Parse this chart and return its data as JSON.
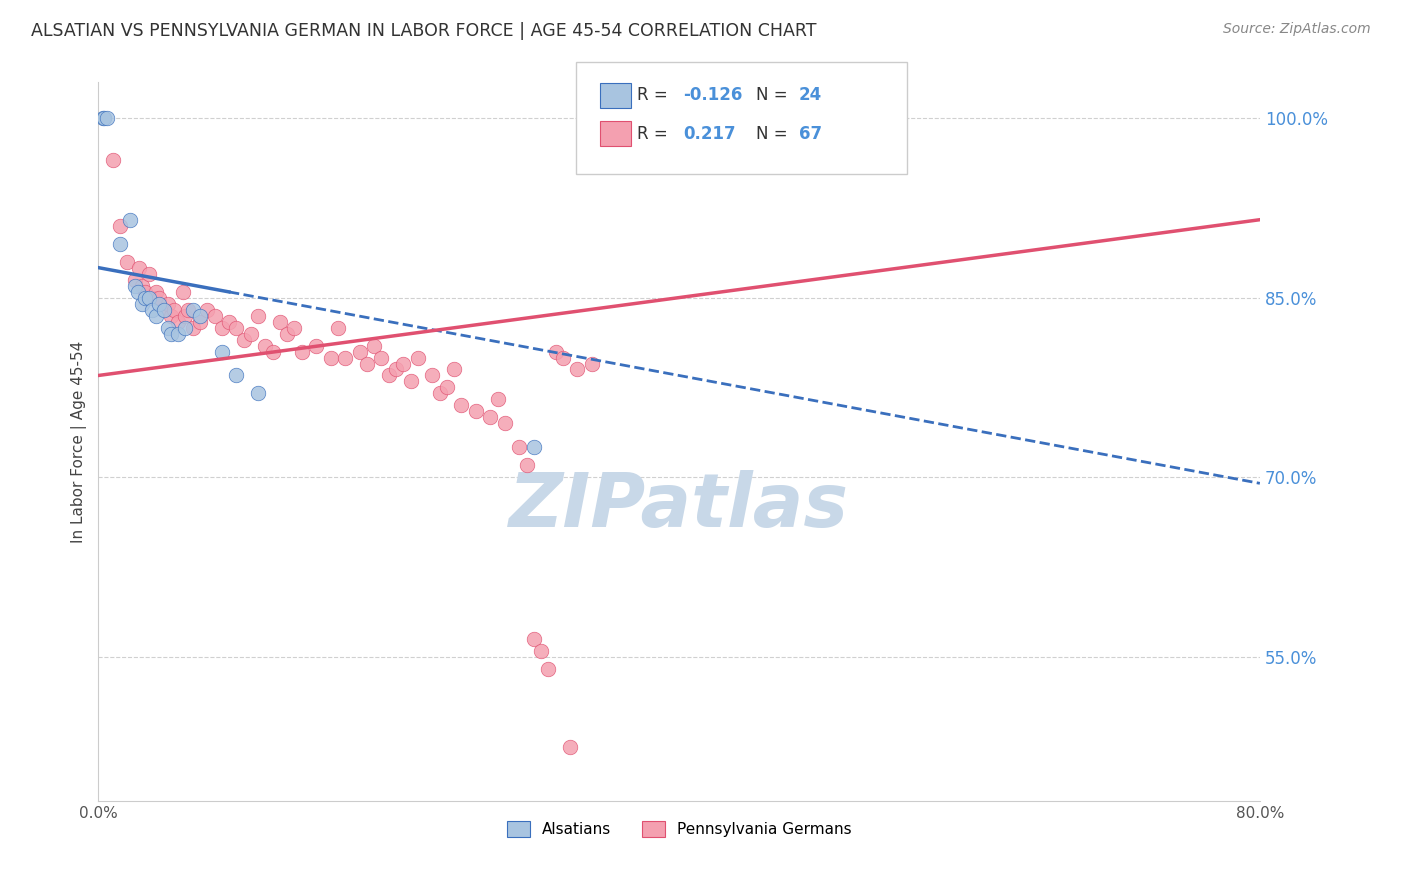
{
  "title": "ALSATIAN VS PENNSYLVANIA GERMAN IN LABOR FORCE | AGE 45-54 CORRELATION CHART",
  "source": "Source: ZipAtlas.com",
  "ylabel": "In Labor Force | Age 45-54",
  "right_yticks": [
    55.0,
    70.0,
    85.0,
    100.0
  ],
  "right_yticklabels": [
    "55.0%",
    "70.0%",
    "85.0%",
    "100.0%"
  ],
  "xmin": 0.0,
  "xmax": 80.0,
  "ymin": 43.0,
  "ymax": 103.0,
  "legend_r_alsatian": "-0.126",
  "legend_n_alsatian": "24",
  "legend_r_penn": "0.217",
  "legend_n_penn": "67",
  "alsatian_color": "#a8c4e0",
  "penn_color": "#f4a0b0",
  "trendline_alsatian_color": "#3a6fbd",
  "trendline_penn_color": "#e05070",
  "watermark_color": "#c8d8e8",
  "background_color": "#ffffff",
  "grid_color": "#d0d0d0",
  "alsatian_trend_x0": 0.0,
  "alsatian_trend_y0": 87.5,
  "alsatian_trend_x1": 80.0,
  "alsatian_trend_y1": 69.5,
  "alsatian_solid_end_x": 9.0,
  "penn_trend_x0": 0.0,
  "penn_trend_y0": 78.5,
  "penn_trend_x1": 80.0,
  "penn_trend_y1": 91.5,
  "alsatian_points_x": [
    0.3,
    0.4,
    0.6,
    1.5,
    2.2,
    2.5,
    2.7,
    3.0,
    3.2,
    3.5,
    3.7,
    4.0,
    4.2,
    4.5,
    4.8,
    5.0,
    5.5,
    6.0,
    6.5,
    7.0,
    8.5,
    9.5,
    11.0,
    30.0
  ],
  "alsatian_points_y": [
    100.0,
    100.0,
    100.0,
    89.5,
    91.5,
    86.0,
    85.5,
    84.5,
    85.0,
    85.0,
    84.0,
    83.5,
    84.5,
    84.0,
    82.5,
    82.0,
    82.0,
    82.5,
    84.0,
    83.5,
    80.5,
    78.5,
    77.0,
    72.5
  ],
  "penn_points_x": [
    1.0,
    1.5,
    2.0,
    2.5,
    2.8,
    3.0,
    3.2,
    3.5,
    3.8,
    4.0,
    4.2,
    4.5,
    4.8,
    5.0,
    5.2,
    5.5,
    5.8,
    6.0,
    6.2,
    6.5,
    7.0,
    7.5,
    8.0,
    8.5,
    9.0,
    9.5,
    10.0,
    10.5,
    11.0,
    11.5,
    12.0,
    12.5,
    13.0,
    13.5,
    14.0,
    15.0,
    16.0,
    16.5,
    17.0,
    18.0,
    18.5,
    19.0,
    19.5,
    20.0,
    20.5,
    21.0,
    21.5,
    22.0,
    23.0,
    23.5,
    24.0,
    24.5,
    25.0,
    26.0,
    27.0,
    27.5,
    28.0,
    29.0,
    29.5,
    30.0,
    30.5,
    31.0,
    31.5,
    32.0,
    32.5,
    33.0,
    34.0
  ],
  "penn_points_y": [
    96.5,
    91.0,
    88.0,
    86.5,
    87.5,
    86.0,
    85.5,
    87.0,
    85.0,
    85.5,
    85.0,
    84.0,
    84.5,
    83.5,
    84.0,
    83.0,
    85.5,
    83.5,
    84.0,
    82.5,
    83.0,
    84.0,
    83.5,
    82.5,
    83.0,
    82.5,
    81.5,
    82.0,
    83.5,
    81.0,
    80.5,
    83.0,
    82.0,
    82.5,
    80.5,
    81.0,
    80.0,
    82.5,
    80.0,
    80.5,
    79.5,
    81.0,
    80.0,
    78.5,
    79.0,
    79.5,
    78.0,
    80.0,
    78.5,
    77.0,
    77.5,
    79.0,
    76.0,
    75.5,
    75.0,
    76.5,
    74.5,
    72.5,
    71.0,
    56.5,
    55.5,
    54.0,
    80.5,
    80.0,
    47.5,
    79.0,
    79.5
  ]
}
